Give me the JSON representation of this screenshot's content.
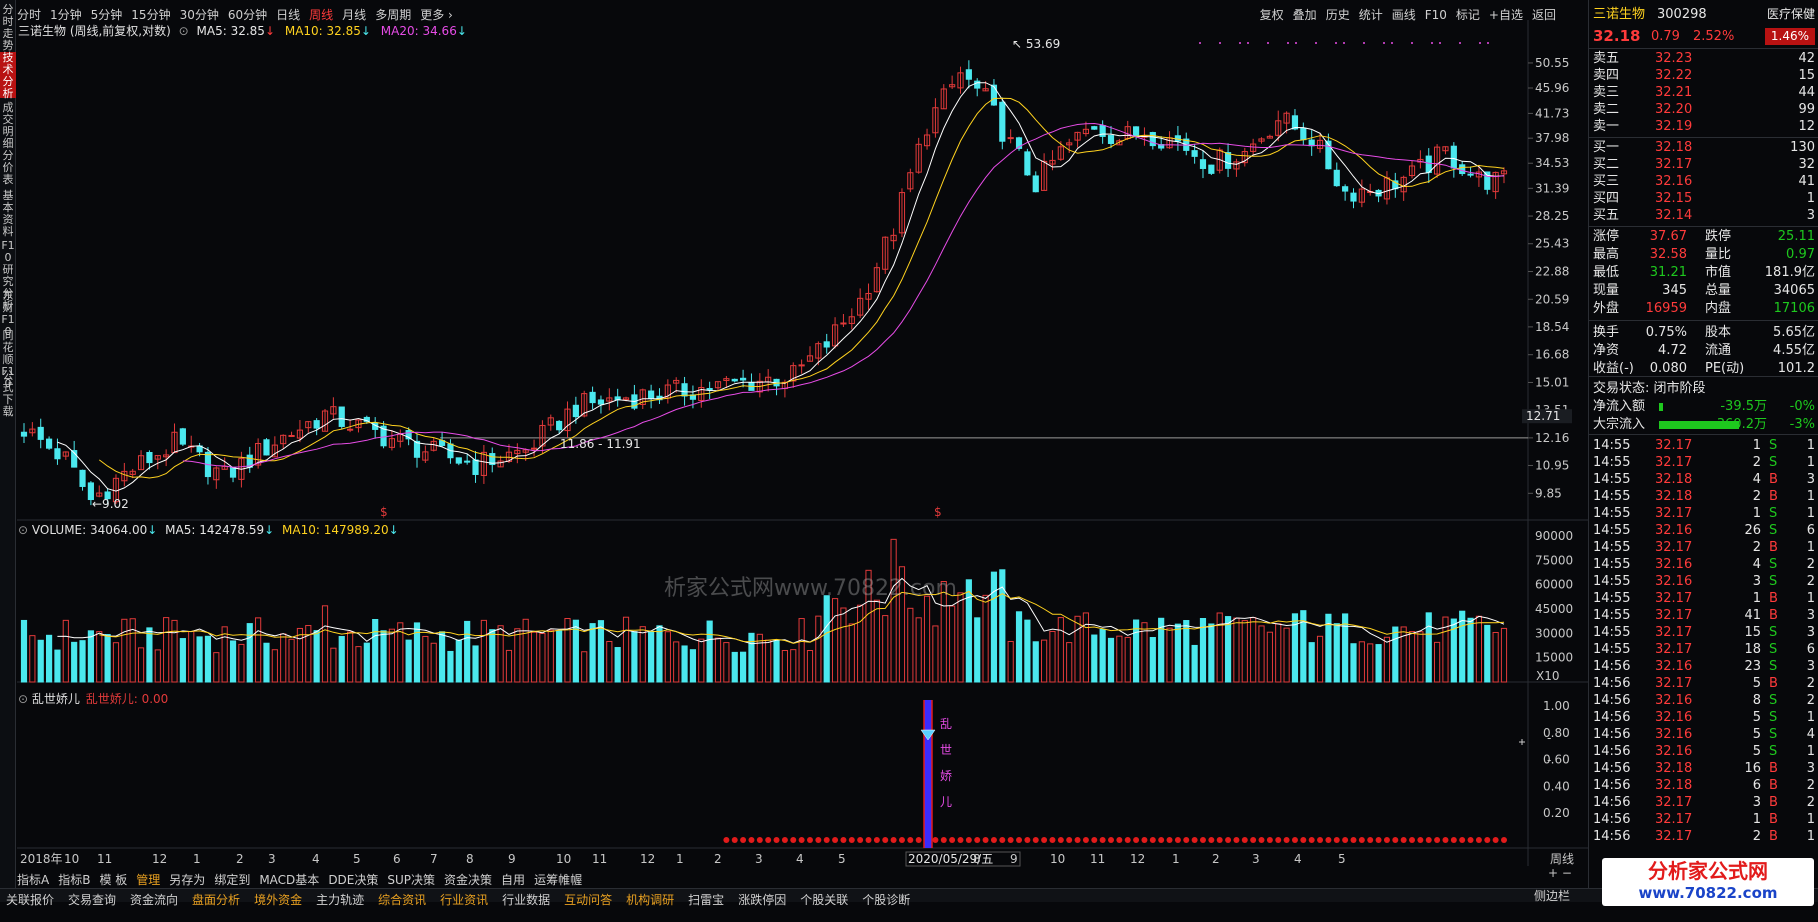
{
  "colors": {
    "up": "#e23a3a",
    "down": "#4be8ee",
    "ma5": "#ffffff",
    "ma10": "#ffd21f",
    "ma20": "#e64ce6",
    "bg": "#07080b",
    "grid": "#1c1f26"
  },
  "left_tabs": [
    "分时走势",
    "技术分析",
    "成交明细",
    "分价表",
    "基本资料",
    "F10研究分析",
    "东财F10",
    "同花顺F10",
    "公式下载"
  ],
  "top_tabs": [
    "分时",
    "1分钟",
    "5分钟",
    "15分钟",
    "30分钟",
    "60分钟",
    "日线",
    "周线",
    "月线",
    "多周期",
    "更多 ›"
  ],
  "top_right": [
    "复权",
    "叠加",
    "历史",
    "统计",
    "画线",
    "F10",
    "标记",
    "+自选",
    "返回"
  ],
  "chart_header": {
    "name": "三诺生物 (周线,前复权,对数)",
    "ma5": "MA5: 32.85",
    "ma10": "MA10: 32.85",
    "ma20": "MA20: 34.66"
  },
  "vol_header": {
    "vol": "VOLUME: 34064.00",
    "ma5": "MA5: 142478.59",
    "ma10": "MA10: 147989.20"
  },
  "ind_header": {
    "name": "乱世娇儿",
    "val": "乱世娇儿: 0.00"
  },
  "price_axis": [
    "50.55",
    "45.96",
    "41.73",
    "37.98",
    "34.53",
    "31.39",
    "28.25",
    "25.43",
    "22.88",
    "20.59",
    "18.54",
    "16.68",
    "15.01",
    "13.51",
    "12.16",
    "10.95",
    "9.85"
  ],
  "vol_axis": [
    "90000",
    "75000",
    "60000",
    "45000",
    "30000",
    "15000"
  ],
  "vol_unit": "X10",
  "ind_axis": [
    "1.00",
    "0.80",
    "0.60",
    "0.40",
    "0.20"
  ],
  "current_price_tag": "12.71",
  "annotations": {
    "high": "53.69",
    "low": "9.02",
    "range": "11.86 - 11.91",
    "marker": "$",
    "ind_label": "乱世娇儿"
  },
  "date_axis": [
    "2018年",
    "10",
    "11",
    "12",
    "1",
    "2",
    "3",
    "4",
    "5",
    "6",
    "7",
    "8",
    "9",
    "10",
    "11",
    "12",
    "1",
    "2",
    "3",
    "4",
    "5",
    "2020/05/29/五",
    "8",
    "9",
    "10",
    "11",
    "12",
    "1",
    "2",
    "3",
    "4",
    "5"
  ],
  "period_label": "周线",
  "bottom_tabs": [
    "指标A",
    "指标B",
    "模 板",
    "管理",
    "另存为",
    "绑定到",
    "MACD基本",
    "DDE决策",
    "SUP决策",
    "资金决策",
    "自用",
    "运筹帷幄"
  ],
  "status_tabs": [
    "关联报价",
    "交易查询",
    "资金流向",
    "盘面分析",
    "境外资金",
    "主力轨迹",
    "综合资讯",
    "行业资讯",
    "行业数据",
    "互动问答",
    "机构调研",
    "扫雷宝",
    "涨跌停因",
    "个股关联",
    "个股诊断"
  ],
  "status_right": "侧边栏",
  "watermark": {
    "site": "分析家公式网",
    "url": "www.70822.com",
    "text": "析家公式网www.70822.com"
  },
  "stock": {
    "name": "三诺生物",
    "code": "300298",
    "industry": "医疗保健",
    "price": "32.18",
    "change": "0.79",
    "pct": "2.52%",
    "badge": "1.46%"
  },
  "asks": [
    [
      "卖五",
      "32.23",
      "42"
    ],
    [
      "卖四",
      "32.22",
      "15"
    ],
    [
      "卖三",
      "32.21",
      "44"
    ],
    [
      "卖二",
      "32.20",
      "99"
    ],
    [
      "卖一",
      "32.19",
      "12"
    ]
  ],
  "bids": [
    [
      "买一",
      "32.18",
      "130"
    ],
    [
      "买二",
      "32.17",
      "32"
    ],
    [
      "买三",
      "32.16",
      "41"
    ],
    [
      "买四",
      "32.15",
      "1"
    ],
    [
      "买五",
      "32.14",
      "3"
    ]
  ],
  "stats": [
    [
      "涨停",
      "37.67",
      "跌停",
      "25.11"
    ],
    [
      "最高",
      "32.58",
      "量比",
      "0.97"
    ],
    [
      "最低",
      "31.21",
      "市值",
      "181.9亿"
    ],
    [
      "现量",
      "345",
      "总量",
      "34065"
    ],
    [
      "外盘",
      "16959",
      "内盘",
      "17106"
    ],
    [
      "换手",
      "0.75%",
      "股本",
      "5.65亿"
    ],
    [
      "净资",
      "4.72",
      "流通",
      "4.55亿"
    ],
    [
      "收益(-)",
      "0.080",
      "PE(动)",
      "101.2"
    ]
  ],
  "trade_status": "交易状态: 闭市阶段",
  "flows": [
    [
      "净流入额",
      "-39.5万",
      "-0%"
    ],
    [
      "大宗流入",
      "-360.2万",
      "-3%"
    ]
  ],
  "ticks": [
    [
      "14:55",
      "32.17",
      "1",
      "S",
      "1"
    ],
    [
      "14:55",
      "32.17",
      "2",
      "S",
      "1"
    ],
    [
      "14:55",
      "32.18",
      "4",
      "B",
      "3"
    ],
    [
      "14:55",
      "32.18",
      "2",
      "B",
      "1"
    ],
    [
      "14:55",
      "32.17",
      "1",
      "S",
      "1"
    ],
    [
      "14:55",
      "32.16",
      "26",
      "S",
      "6"
    ],
    [
      "14:55",
      "32.17",
      "2",
      "B",
      "1"
    ],
    [
      "14:55",
      "32.16",
      "4",
      "S",
      "2"
    ],
    [
      "14:55",
      "32.16",
      "3",
      "S",
      "2"
    ],
    [
      "14:55",
      "32.17",
      "1",
      "B",
      "1"
    ],
    [
      "14:55",
      "32.17",
      "41",
      "B",
      "3"
    ],
    [
      "14:55",
      "32.17",
      "15",
      "S",
      "3"
    ],
    [
      "14:55",
      "32.17",
      "18",
      "S",
      "6"
    ],
    [
      "14:56",
      "32.16",
      "23",
      "S",
      "3"
    ],
    [
      "14:56",
      "32.17",
      "5",
      "B",
      "2"
    ],
    [
      "14:56",
      "32.16",
      "8",
      "S",
      "2"
    ],
    [
      "14:56",
      "32.16",
      "5",
      "S",
      "1"
    ],
    [
      "14:56",
      "32.16",
      "5",
      "S",
      "4"
    ],
    [
      "14:56",
      "32.16",
      "5",
      "S",
      "1"
    ],
    [
      "14:56",
      "32.18",
      "16",
      "B",
      "3"
    ],
    [
      "14:56",
      "32.18",
      "6",
      "B",
      "2"
    ],
    [
      "14:56",
      "32.17",
      "3",
      "B",
      "2"
    ],
    [
      "14:56",
      "32.17",
      "1",
      "B",
      "1"
    ],
    [
      "14:56",
      "32.17",
      "2",
      "B",
      "1"
    ]
  ],
  "chart_data": {
    "type": "candlestick",
    "title": "三诺生物 (周线,前复权,对数)",
    "ylim": [
      9.02,
      53.69
    ],
    "highlight_date": "2020/05/29/五",
    "high_label": "53.69",
    "low_label": "9.02"
  }
}
